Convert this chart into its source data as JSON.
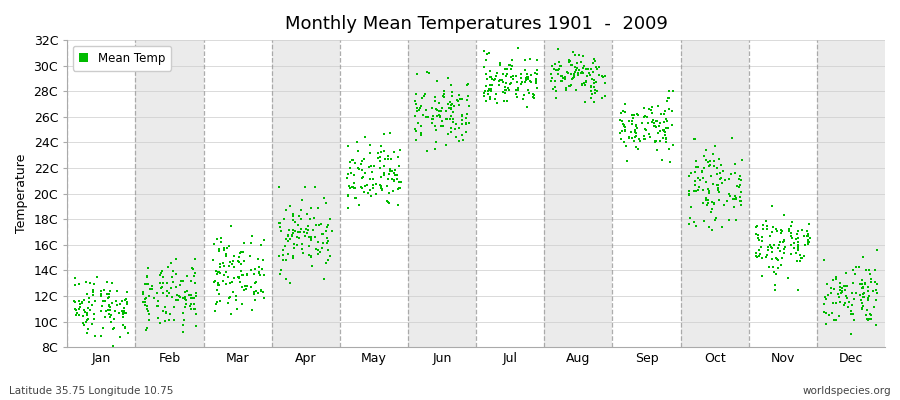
{
  "title": "Monthly Mean Temperatures 1901  -  2009",
  "ylabel": "Temperature",
  "subtitle_left": "Latitude 35.75 Longitude 10.75",
  "subtitle_right": "worldspecies.org",
  "legend_label": "Mean Temp",
  "marker_color": "#00bb00",
  "bg_colors": [
    "#ffffff",
    "#ebebeb"
  ],
  "ytick_labels": [
    "8C",
    "10C",
    "12C",
    "14C",
    "16C",
    "18C",
    "20C",
    "22C",
    "24C",
    "26C",
    "28C",
    "30C",
    "32C"
  ],
  "ytick_values": [
    8,
    10,
    12,
    14,
    16,
    18,
    20,
    22,
    24,
    26,
    28,
    30,
    32
  ],
  "months": [
    "Jan",
    "Feb",
    "Mar",
    "Apr",
    "May",
    "Jun",
    "Jul",
    "Aug",
    "Sep",
    "Oct",
    "Nov",
    "Dec"
  ],
  "month_means": [
    11.2,
    11.8,
    13.8,
    16.8,
    21.2,
    26.2,
    28.8,
    29.2,
    25.2,
    20.5,
    16.0,
    12.2
  ],
  "month_stds": [
    1.2,
    1.3,
    1.4,
    1.5,
    1.4,
    1.3,
    1.0,
    0.9,
    1.1,
    1.4,
    1.3,
    1.3
  ],
  "month_mins": [
    8.0,
    8.5,
    10.0,
    13.0,
    17.5,
    23.0,
    26.0,
    26.5,
    22.5,
    16.5,
    12.5,
    9.0
  ],
  "month_maxs": [
    14.5,
    15.5,
    17.5,
    20.5,
    25.0,
    29.5,
    31.8,
    32.2,
    28.0,
    26.5,
    19.0,
    16.5
  ],
  "n_years": 109,
  "seed": 42,
  "ylim": [
    8,
    32
  ],
  "figsize": [
    9.0,
    4.0
  ],
  "dpi": 100
}
